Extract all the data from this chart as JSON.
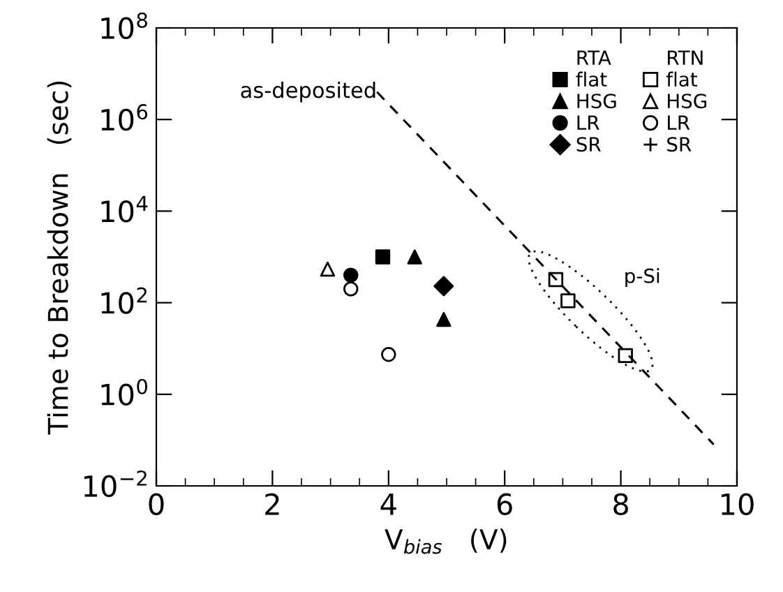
{
  "chart_data": {
    "type": "scatter",
    "xlabel": "V$_{bias}$   (V)",
    "ylabel": "Time to Breakdown   (sec)",
    "xlim": [
      0,
      10
    ],
    "xticks": [
      0,
      2,
      4,
      6,
      8,
      10
    ],
    "ylim": [
      0.01,
      100000000
    ],
    "log": "y",
    "yticks": [
      {
        "value": 0.01,
        "label": "10$^{−2}$"
      },
      {
        "value": 1,
        "label": "10$^{0}$"
      },
      {
        "value": 100,
        "label": "10$^{2}$"
      },
      {
        "value": 10000,
        "label": "10$^{4}$"
      },
      {
        "value": 1000000,
        "label": "10$^{6}$"
      },
      {
        "value": 100000000,
        "label": "10$^{8}$"
      }
    ],
    "grid": false,
    "legend": "top right",
    "legend_title": "RTA",
    "annotations": [
      {
        "text": "as-deposited",
        "x": 3.8,
        "y": 4000000
      },
      "p-Si",
      "RTN"
    ],
    "series": [
      {
        "name": "flat",
        "marker": "square",
        "color": "#000000",
        "x": [
          3.9
        ],
        "values": [
          1000
        ]
      },
      {
        "name": "HSG",
        "marker": "triangle",
        "color": "#000000",
        "x": [
          4.45,
          4.95
        ],
        "values": [
          1000,
          43
        ]
      },
      {
        "name": "LR",
        "marker": "circle",
        "color": "#000000",
        "x": [
          3.35
        ],
        "values": [
          400
        ]
      },
      {
        "name": "SR",
        "marker": "diamond",
        "color": "#000000",
        "x": [
          4.95
        ],
        "values": [
          230
        ]
      },
      {
        "name": "flat",
        "marker": "square",
        "color": "#000000",
        "x": [
          6.88,
          7.09,
          8.08
        ],
        "values": [
          320,
          110,
          7
        ]
      },
      {
        "name": "HSG",
        "marker": "triangle",
        "color": "#000000",
        "x": [
          2.95
        ],
        "values": [
          540
        ]
      },
      {
        "name": "LR",
        "marker": "circle",
        "color": "#000000",
        "x": [
          3.35,
          4.0
        ],
        "values": [
          200,
          7.4
        ]
      },
      {
        "name": "SR",
        "marker": "cross",
        "color": "#000000"
      },
      {
        "type": "line",
        "line_style": "dashed",
        "marker": "none",
        "color": "#000000",
        "x": [
          3.8,
          9.6
        ],
        "values": [
          4000000,
          0.08
        ]
      }
    ]
  }
}
